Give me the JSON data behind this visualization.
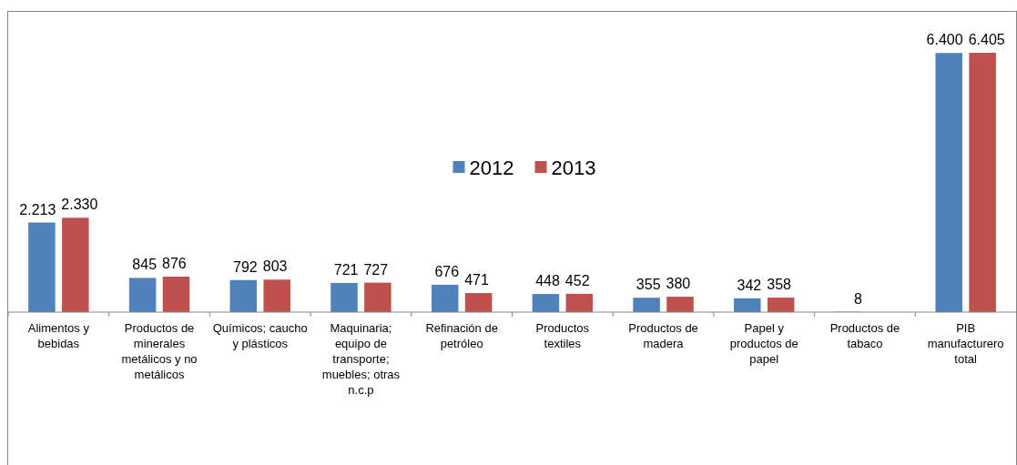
{
  "chart_data": {
    "type": "bar",
    "categories": [
      "Alimentos y bebidas",
      "Productos de minerales metálicos y no metálicos",
      "Químicos; caucho y plásticos",
      "Maquinaria; equipo de transporte; muebles; otras n.c.p",
      "Refinación de petróleo",
      "Productos textiles",
      "Productos de madera",
      "Papel y productos de papel",
      "Productos de tabaco",
      "PIB manufacturero total"
    ],
    "series": [
      {
        "name": "2012",
        "color": "#4f81bd",
        "values": [
          2213,
          845,
          792,
          721,
          676,
          448,
          355,
          342,
          8,
          6400
        ],
        "value_labels": [
          "2.213",
          "845",
          "792",
          "721",
          "676",
          "448",
          "355",
          "342",
          "8",
          "6.400"
        ]
      },
      {
        "name": "2013",
        "color": "#c0504d",
        "values": [
          2330,
          876,
          803,
          727,
          471,
          452,
          380,
          358,
          null,
          6405
        ],
        "value_labels": [
          "2.330",
          "876",
          "803",
          "727",
          "471",
          "452",
          "380",
          "358",
          null,
          "6.405"
        ]
      }
    ],
    "legend": "top",
    "grid": false
  }
}
